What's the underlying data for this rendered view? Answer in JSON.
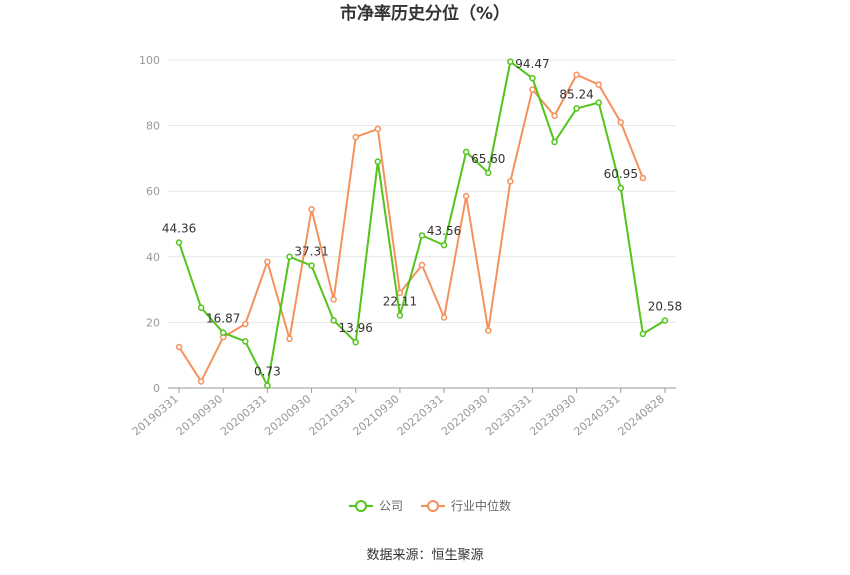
{
  "chart_data": {
    "type": "line",
    "title": "市净率历史分位（%）",
    "source": "数据来源：恒生聚源",
    "ylim": [
      0,
      100
    ],
    "yticks": [
      0,
      20,
      40,
      60,
      80,
      100
    ],
    "x": [
      "20190331",
      "20190630",
      "20190930",
      "20191231",
      "20200331",
      "20200630",
      "20200930",
      "20201231",
      "20210331",
      "20210630",
      "20210930",
      "20211231",
      "20220331",
      "20220630",
      "20220930",
      "20221231",
      "20230331",
      "20230630",
      "20230930",
      "20231231",
      "20240331",
      "20240630",
      "20240828"
    ],
    "xtick_labels": [
      "20190331",
      "20190930",
      "20200331",
      "20200930",
      "20210331",
      "20210930",
      "20220331",
      "20220930",
      "20230331",
      "20230930",
      "20240331",
      "20240828"
    ],
    "series": [
      {
        "name": "公司",
        "color": "#52c41a",
        "values": [
          44.36,
          24.5,
          16.87,
          14.2,
          0.73,
          40.0,
          37.31,
          20.6,
          13.96,
          69.0,
          22.11,
          46.5,
          43.56,
          72.0,
          65.6,
          99.5,
          94.47,
          75.0,
          85.24,
          87.0,
          60.95,
          16.5,
          20.58
        ]
      },
      {
        "name": "行业中位数",
        "color": "#f4925e",
        "values": [
          12.5,
          2.0,
          15.5,
          19.5,
          38.5,
          15.0,
          54.5,
          27.0,
          76.5,
          79.0,
          29.0,
          37.5,
          21.5,
          58.5,
          17.5,
          63.0,
          91.0,
          83.0,
          95.5,
          92.5,
          81.0,
          64.0,
          null
        ]
      }
    ],
    "data_labels": [
      {
        "index": 0,
        "text": "44.36"
      },
      {
        "index": 2,
        "text": "16.87"
      },
      {
        "index": 4,
        "text": "0.73"
      },
      {
        "index": 6,
        "text": "37.31"
      },
      {
        "index": 8,
        "text": "13.96"
      },
      {
        "index": 10,
        "text": "22.11"
      },
      {
        "index": 12,
        "text": "43.56"
      },
      {
        "index": 14,
        "text": "65.60"
      },
      {
        "index": 16,
        "text": "94.47"
      },
      {
        "index": 18,
        "text": "85.24"
      },
      {
        "index": 20,
        "text": "60.95"
      },
      {
        "index": 22,
        "text": "20.58"
      }
    ],
    "legend_position": "bottom"
  }
}
